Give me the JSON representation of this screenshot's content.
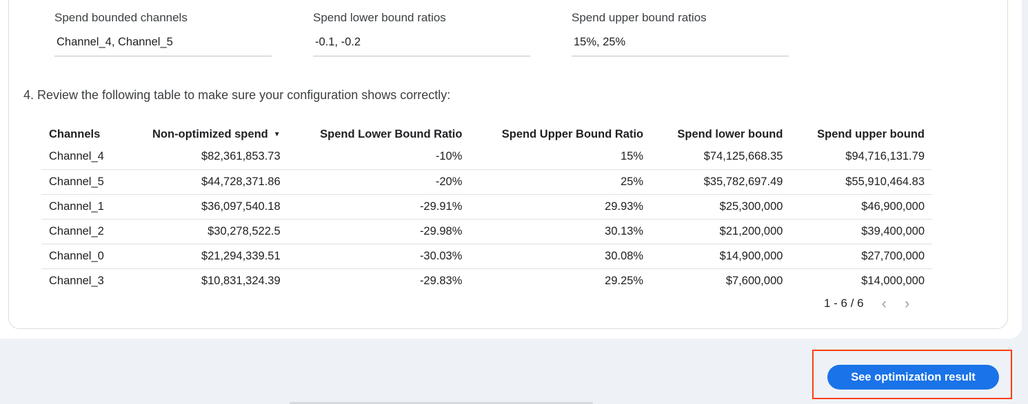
{
  "fields": [
    {
      "label": "Spend bounded channels",
      "value": "Channel_4, Channel_5"
    },
    {
      "label": "Spend lower bound ratios",
      "value": "-0.1, -0.2"
    },
    {
      "label": "Spend upper bound ratios",
      "value": "15%, 25%"
    }
  ],
  "instruction": "4. Review the following table to make sure your configuration shows correctly:",
  "table": {
    "headers": [
      "Channels",
      "Non-optimized spend",
      "Spend Lower Bound Ratio",
      "Spend Upper Bound Ratio",
      "Spend lower bound",
      "Spend upper bound"
    ],
    "sort_icon": "sort-desc-icon",
    "rows": [
      [
        "Channel_4",
        "$82,361,853.73",
        "-10%",
        "15%",
        "$74,125,668.35",
        "$94,716,131.79"
      ],
      [
        "Channel_5",
        "$44,728,371.86",
        "-20%",
        "25%",
        "$35,782,697.49",
        "$55,910,464.83"
      ],
      [
        "Channel_1",
        "$36,097,540.18",
        "-29.91%",
        "29.93%",
        "$25,300,000",
        "$46,900,000"
      ],
      [
        "Channel_2",
        "$30,278,522.5",
        "-29.98%",
        "30.13%",
        "$21,200,000",
        "$39,400,000"
      ],
      [
        "Channel_0",
        "$21,294,339.51",
        "-30.03%",
        "30.08%",
        "$14,900,000",
        "$27,700,000"
      ],
      [
        "Channel_3",
        "$10,831,324.39",
        "-29.83%",
        "29.25%",
        "$7,600,000",
        "$14,000,000"
      ]
    ]
  },
  "pager": {
    "range": "1 - 6 / 6"
  },
  "button": {
    "label": "See optimization result",
    "color": "#1a73e8",
    "highlight": "#ff3d0f"
  }
}
